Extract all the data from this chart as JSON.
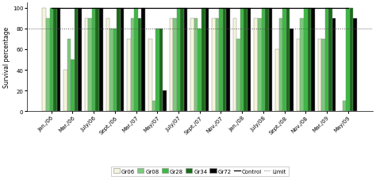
{
  "categories": [
    "Jan./06",
    "Mar./06",
    "July/06",
    "Sept./06",
    "Mar./07",
    "May/07",
    "July/07",
    "Sept./07",
    "Nov./07",
    "Jan./08",
    "July/08",
    "Sept./08",
    "Nov./08",
    "Mar./09",
    "May/09"
  ],
  "Gr06": [
    100,
    40,
    90,
    90,
    70,
    70,
    90,
    90,
    90,
    90,
    90,
    60,
    70,
    70,
    0
  ],
  "Gr08": [
    90,
    70,
    90,
    80,
    90,
    10,
    90,
    90,
    90,
    70,
    90,
    90,
    90,
    70,
    10
  ],
  "Gr28": [
    100,
    50,
    100,
    80,
    100,
    80,
    100,
    80,
    100,
    100,
    100,
    100,
    100,
    100,
    100
  ],
  "Gr34": [
    100,
    100,
    100,
    100,
    90,
    80,
    100,
    100,
    100,
    100,
    100,
    100,
    100,
    100,
    100
  ],
  "Gr72": [
    100,
    100,
    100,
    100,
    100,
    20,
    100,
    100,
    100,
    100,
    100,
    80,
    100,
    90,
    90
  ],
  "Control_y": [
    100,
    100,
    100,
    100,
    100,
    100,
    100,
    100,
    100,
    100,
    100,
    100,
    100,
    100,
    100
  ],
  "limit": 80,
  "colors": {
    "Gr06": "#f5f5dc",
    "Gr08": "#7dc87d",
    "Gr28": "#3cb843",
    "Gr34": "#1a6b1a",
    "Gr72": "#050505"
  },
  "ylabel": "Survival percentage",
  "ylim": [
    0,
    105
  ],
  "bar_width": 0.55,
  "group_width": 0.85,
  "figsize": [
    4.74,
    2.28
  ],
  "dpi": 100
}
